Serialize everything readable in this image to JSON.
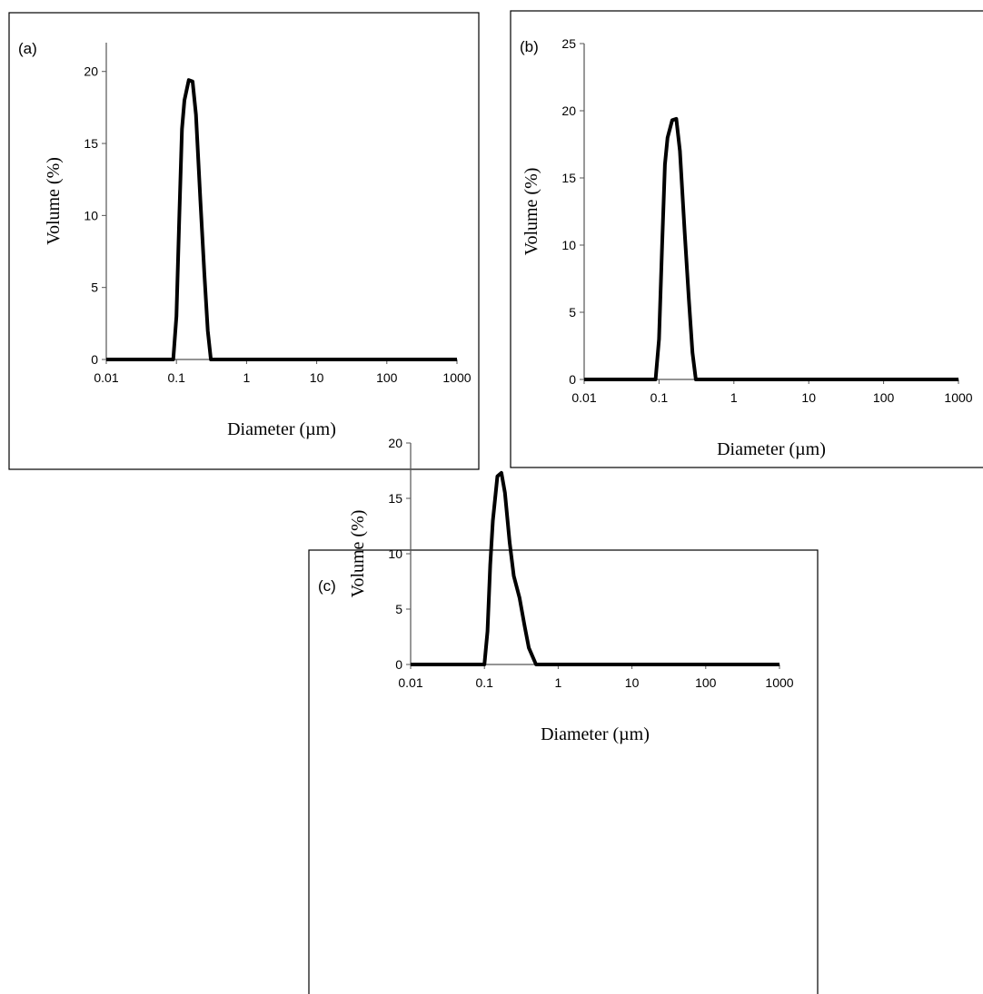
{
  "chart_data": [
    {
      "type": "line",
      "panel_label": "(a)",
      "x_label": "Diameter (µm)",
      "y_label": "Volume (%)",
      "log_x": true,
      "xlim": [
        0.01,
        1000
      ],
      "xticks": [
        0.01,
        0.1,
        1,
        10,
        100,
        1000
      ],
      "ylim": [
        0,
        22
      ],
      "yticks": [
        0,
        5,
        10,
        15,
        20
      ],
      "x": [
        0.01,
        0.08,
        0.09,
        0.1,
        0.11,
        0.12,
        0.13,
        0.15,
        0.17,
        0.19,
        0.22,
        0.25,
        0.28,
        0.31,
        0.35,
        1,
        10,
        100,
        1000
      ],
      "color": "#000000",
      "values": [
        0,
        0,
        0,
        3,
        10,
        16,
        18,
        19.4,
        19.3,
        17,
        11,
        6,
        2,
        0,
        0,
        0,
        0,
        0,
        0
      ]
    },
    {
      "type": "line",
      "panel_label": "(b)",
      "x_label": "Diameter (µm)",
      "y_label": "Volume (%)",
      "log_x": true,
      "xlim": [
        0.01,
        1000
      ],
      "xticks": [
        0.01,
        0.1,
        1,
        10,
        100,
        1000
      ],
      "ylim": [
        0,
        25
      ],
      "yticks": [
        0,
        5,
        10,
        15,
        20,
        25
      ],
      "x": [
        0.01,
        0.08,
        0.09,
        0.1,
        0.11,
        0.12,
        0.13,
        0.15,
        0.17,
        0.19,
        0.22,
        0.25,
        0.28,
        0.31,
        0.35,
        1,
        10,
        100,
        1000
      ],
      "color": "#000000",
      "values": [
        0,
        0,
        0,
        3,
        10,
        16,
        18,
        19.3,
        19.4,
        17,
        11,
        6,
        2,
        0,
        0,
        0,
        0,
        0,
        0
      ]
    },
    {
      "type": "line",
      "panel_label": "(c)",
      "x_label": "Diameter  (µm)",
      "y_label": "Volume (%)",
      "log_x": true,
      "xlim": [
        0.01,
        1000
      ],
      "xticks": [
        0.01,
        0.1,
        1,
        10,
        100,
        1000
      ],
      "ylim": [
        0,
        20
      ],
      "yticks": [
        0,
        5,
        10,
        15,
        20
      ],
      "x": [
        0.01,
        0.1,
        0.11,
        0.12,
        0.13,
        0.15,
        0.17,
        0.19,
        0.22,
        0.25,
        0.3,
        0.35,
        0.4,
        0.5,
        1,
        10,
        100,
        1000
      ],
      "color": "#000000",
      "values": [
        0,
        0,
        3,
        9,
        13,
        17,
        17.3,
        15.5,
        11,
        8,
        6,
        3.5,
        1.5,
        0,
        0,
        0,
        0,
        0
      ]
    }
  ]
}
